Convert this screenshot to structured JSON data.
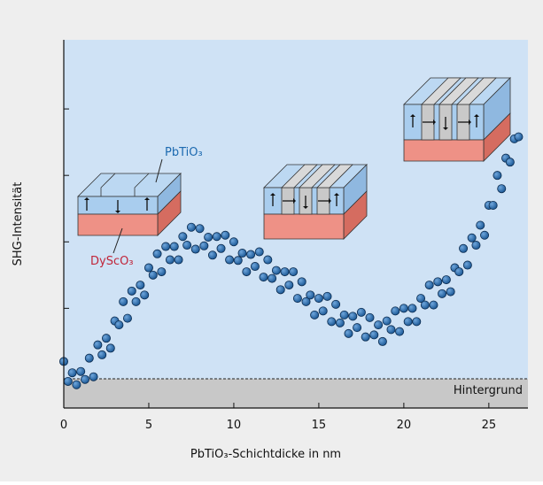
{
  "chart_data": {
    "type": "scatter",
    "xlabel": "PbTiO₃-Schichtdicke in nm",
    "ylabel": "SHG-Intensität",
    "xlim": [
      0,
      27.3
    ],
    "ylim": [
      0.5,
      6.04
    ],
    "xticks": [
      0,
      5,
      10,
      15,
      20,
      25
    ],
    "yticks": [
      2,
      3,
      4,
      5
    ],
    "color": "#1d5a97",
    "background": {
      "label": "Hintergrund",
      "value": 0.94
    },
    "annotations": [
      "PbTiO₃",
      "DyScO₃"
    ],
    "x": [
      0,
      0.25,
      0.5,
      0.75,
      1,
      1.25,
      1.5,
      1.75,
      2,
      2.25,
      2.5,
      2.75,
      3,
      3.25,
      3.5,
      3.75,
      4,
      4.25,
      4.5,
      4.75,
      5,
      5.25,
      5.5,
      5.75,
      6,
      6.25,
      6.5,
      6.75,
      7,
      7.25,
      7.5,
      7.75,
      8,
      8.25,
      8.5,
      8.75,
      9,
      9.25,
      9.5,
      9.75,
      10,
      10.25,
      10.5,
      10.75,
      11,
      11.25,
      11.5,
      11.75,
      12,
      12.25,
      12.5,
      12.75,
      13,
      13.25,
      13.5,
      13.75,
      14,
      14.25,
      14.5,
      14.75,
      15,
      15.25,
      15.5,
      15.75,
      16,
      16.25,
      16.5,
      16.75,
      17,
      17.25,
      17.5,
      17.75,
      18,
      18.25,
      18.5,
      18.75,
      19,
      19.25,
      19.5,
      19.75,
      20,
      20.25,
      20.5,
      20.75,
      21,
      21.25,
      21.5,
      21.75,
      22,
      22.25,
      22.5,
      22.75,
      23,
      23.25,
      23.5,
      23.75,
      24,
      24.25,
      24.5,
      24.75,
      25,
      25.25,
      25.5,
      25.75,
      26,
      26.25,
      26.5,
      26.75
    ],
    "y": [
      1.2,
      0.9,
      1.03,
      0.85,
      1.05,
      0.93,
      1.25,
      0.97,
      1.45,
      1.3,
      1.55,
      1.4,
      1.81,
      1.75,
      2.1,
      1.85,
      2.26,
      2.1,
      2.35,
      2.2,
      2.61,
      2.5,
      2.82,
      2.55,
      2.93,
      2.73,
      2.93,
      2.73,
      3.08,
      2.95,
      3.22,
      2.89,
      3.2,
      2.94,
      3.07,
      2.8,
      3.08,
      2.9,
      3.1,
      2.73,
      3.0,
      2.72,
      2.83,
      2.55,
      2.81,
      2.63,
      2.85,
      2.47,
      2.73,
      2.45,
      2.57,
      2.28,
      2.55,
      2.35,
      2.55,
      2.15,
      2.4,
      2.1,
      2.2,
      1.9,
      2.15,
      1.96,
      2.18,
      1.8,
      2.06,
      1.78,
      1.9,
      1.62,
      1.88,
      1.71,
      1.94,
      1.57,
      1.86,
      1.6,
      1.75,
      1.5,
      1.81,
      1.68,
      1.96,
      1.65,
      2.0,
      1.8,
      2.0,
      1.8,
      2.15,
      2.05,
      2.35,
      2.05,
      2.4,
      2.22,
      2.43,
      2.25,
      2.61,
      2.55,
      2.9,
      2.65,
      3.06,
      2.95,
      3.25,
      3.1,
      3.55,
      3.55,
      4.0,
      3.8,
      4.26,
      4.2,
      4.55,
      4.58
    ]
  }
}
